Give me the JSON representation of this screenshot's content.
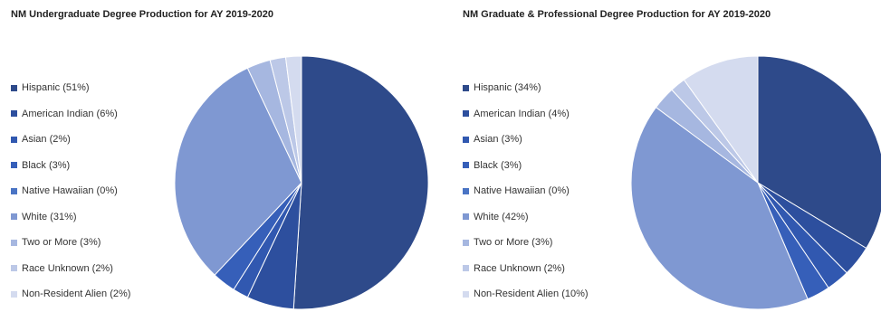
{
  "chart_data": [
    {
      "type": "pie",
      "title": "NM Undergraduate Degree Production for AY 2019-2020",
      "legend_position": "left",
      "categories": [
        "Hispanic",
        "American Indian",
        "Asian",
        "Black",
        "Native Hawaiian",
        "White",
        "Two or More",
        "Race Unknown",
        "Non-Resident Alien"
      ],
      "legend_labels": [
        "Hispanic (51%)",
        "American Indian (6%)",
        "Asian (2%)",
        "Black (3%)",
        "Native Hawaiian (0%)",
        "White (31%)",
        "Two or More (3%)",
        "Race Unknown (2%)",
        "Non-Resident Alien (2%)"
      ],
      "values": [
        51,
        6,
        2,
        3,
        0,
        31,
        3,
        2,
        2
      ],
      "colors": [
        "#2e4a8a",
        "#2d4f9e",
        "#3158b0",
        "#365fb9",
        "#4a74c4",
        "#7f98d2",
        "#a6b7e0",
        "#bcc8e7",
        "#d4dbef"
      ]
    },
    {
      "type": "pie",
      "title": "NM Graduate & Professional Degree Production for AY 2019-2020",
      "legend_position": "left",
      "categories": [
        "Hispanic",
        "American Indian",
        "Asian",
        "Black",
        "Native Hawaiian",
        "White",
        "Two or More",
        "Race Unknown",
        "Non-Resident Alien"
      ],
      "legend_labels": [
        "Hispanic (34%)",
        "American Indian (4%)",
        "Asian (3%)",
        "Black (3%)",
        "Native Hawaiian (0%)",
        "White (42%)",
        "Two or More (3%)",
        "Race Unknown (2%)",
        "Non-Resident Alien (10%)"
      ],
      "values": [
        34,
        4,
        3,
        3,
        0,
        42,
        3,
        2,
        10
      ],
      "colors": [
        "#2e4a8a",
        "#2d4f9e",
        "#3158b0",
        "#365fb9",
        "#4a74c4",
        "#7f98d2",
        "#a6b7e0",
        "#bcc8e7",
        "#d4dbef"
      ]
    }
  ]
}
